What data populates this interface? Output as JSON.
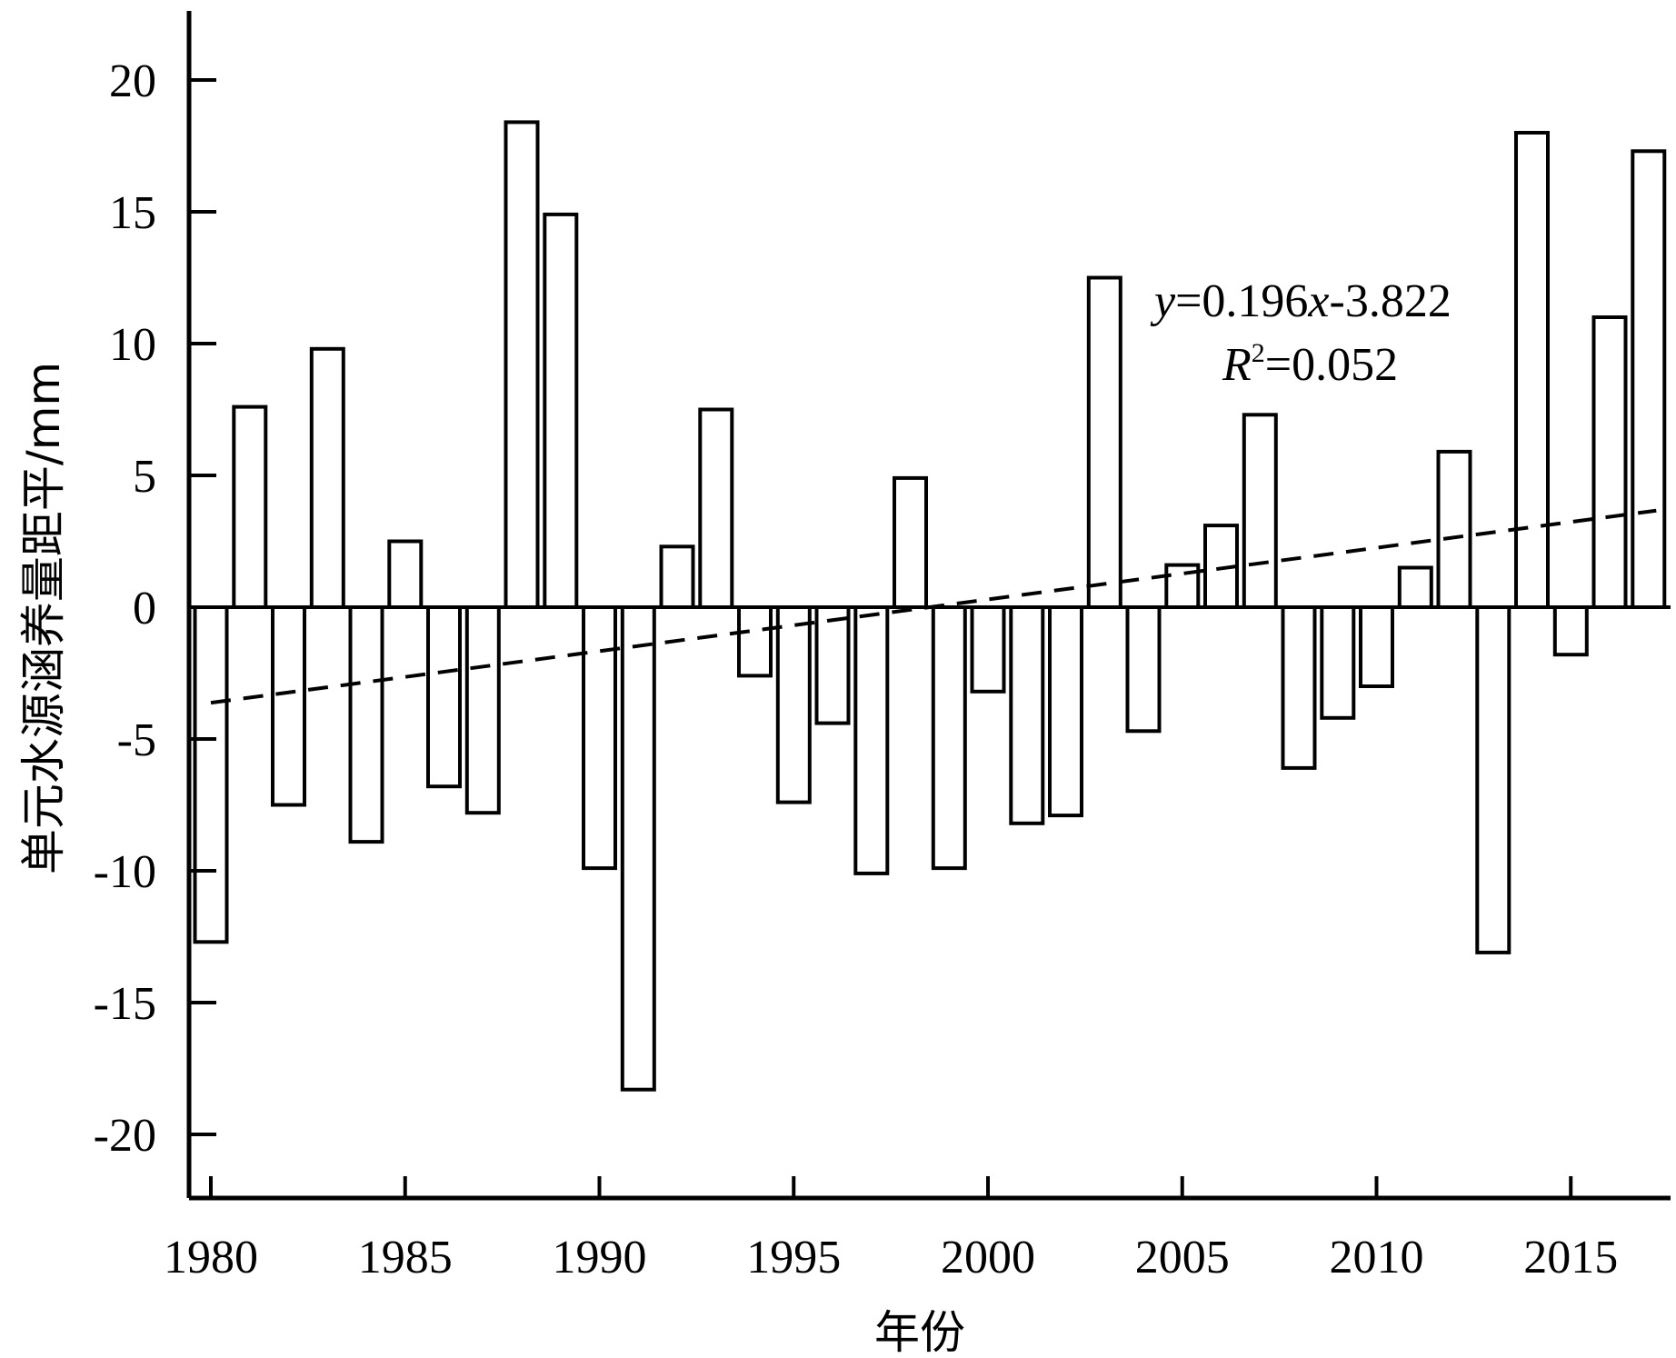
{
  "chart_data": {
    "type": "bar",
    "xlabel": "年份",
    "ylabel": "单元水源涵养量距平/mm",
    "ylim": [
      -22.5,
      22.5
    ],
    "xlim": [
      1979.6,
      2017.6
    ],
    "yticks": [
      20,
      15,
      10,
      5,
      0,
      -5,
      -10,
      -15,
      -20
    ],
    "xticks": [
      1980,
      1985,
      1990,
      1995,
      2000,
      2005,
      2010,
      2015
    ],
    "grid": false,
    "categories": [
      1980,
      1981,
      1982,
      1983,
      1984,
      1985,
      1986,
      1987,
      1988,
      1989,
      1990,
      1991,
      1992,
      1993,
      1994,
      1995,
      1996,
      1997,
      1998,
      1999,
      2000,
      2001,
      2002,
      2003,
      2004,
      2005,
      2006,
      2007,
      2008,
      2009,
      2010,
      2011,
      2012,
      2013,
      2014,
      2015,
      2016,
      2017
    ],
    "values": [
      -12.7,
      7.6,
      -7.5,
      9.8,
      -8.9,
      2.5,
      -6.8,
      -7.8,
      18.4,
      14.9,
      -9.9,
      -18.3,
      2.3,
      7.5,
      -2.6,
      -7.4,
      -4.4,
      -10.1,
      4.9,
      -9.9,
      -3.2,
      -8.2,
      -7.9,
      12.5,
      -4.7,
      1.6,
      3.1,
      7.3,
      -6.1,
      -4.2,
      -3.0,
      1.5,
      5.9,
      -13.1,
      18.0,
      -1.8,
      11.0,
      17.3
    ],
    "trendline": {
      "slope": 0.196,
      "intercept": -3.822,
      "style": "dashed",
      "equation_y_prefix": "y",
      "equation_y_value": "=0.196",
      "equation_x": "x",
      "equation_y_suffix": "-3.822",
      "equation_r_symbol": "R",
      "equation_r_exp": "2",
      "equation_r_value": "=0.052"
    },
    "colors": {
      "bar_fill": "#ffffff",
      "bar_stroke": "#000000",
      "axis": "#000000"
    }
  }
}
